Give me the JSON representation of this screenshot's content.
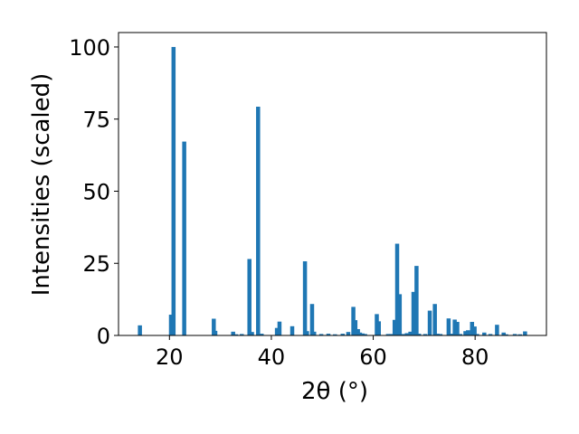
{
  "chart_data": {
    "type": "bar",
    "xlabel": "2θ (°)",
    "ylabel": "Intensities (scaled)",
    "xlim": [
      10,
      94
    ],
    "ylim": [
      0,
      105
    ],
    "xticks": [
      20,
      40,
      60,
      80
    ],
    "yticks": [
      0,
      25,
      50,
      75,
      100
    ],
    "bar_color": "#1f77b4",
    "bar_width": 0.8,
    "grid": false,
    "x": [
      14.2,
      20.3,
      20.8,
      22.9,
      28.7,
      29.0,
      32.5,
      33.1,
      34.2,
      35.7,
      36.2,
      37.4,
      38.1,
      41.1,
      41.6,
      44.1,
      46.6,
      47.0,
      48.0,
      48.4,
      49.8,
      51.2,
      52.5,
      54.0,
      55.1,
      56.1,
      56.5,
      57.0,
      57.4,
      57.9,
      58.4,
      60.7,
      61.1,
      62.9,
      63.6,
      64.2,
      64.7,
      65.2,
      65.8,
      66.6,
      67.3,
      67.9,
      68.5,
      69.0,
      70.2,
      71.1,
      72.1,
      72.6,
      73.2,
      74.8,
      75.3,
      76.0,
      76.5,
      77.1,
      78.1,
      78.6,
      79.4,
      79.9,
      80.4,
      81.8,
      83.0,
      84.3,
      85.6,
      86.1,
      87.8,
      88.8,
      89.8
    ],
    "values": [
      3.5,
      7.2,
      100,
      67.2,
      5.8,
      1.6,
      1.3,
      0.4,
      0.5,
      26.5,
      1.2,
      79.3,
      0.6,
      2.6,
      4.8,
      3.2,
      25.7,
      1.5,
      10.9,
      1.3,
      0.5,
      0.6,
      0.4,
      0.6,
      1.2,
      9.9,
      5.3,
      2.2,
      1.0,
      0.7,
      0.5,
      7.4,
      4.9,
      0.5,
      0.5,
      5.4,
      31.8,
      14.3,
      0.5,
      0.8,
      1.3,
      15.1,
      24.1,
      0.6,
      0.5,
      8.6,
      10.9,
      0.6,
      0.5,
      5.9,
      0.6,
      5.5,
      4.7,
      0.5,
      1.5,
      1.8,
      4.7,
      3.1,
      0.5,
      1.0,
      0.5,
      3.7,
      1.0,
      0.4,
      0.5,
      0.4,
      1.4
    ]
  }
}
